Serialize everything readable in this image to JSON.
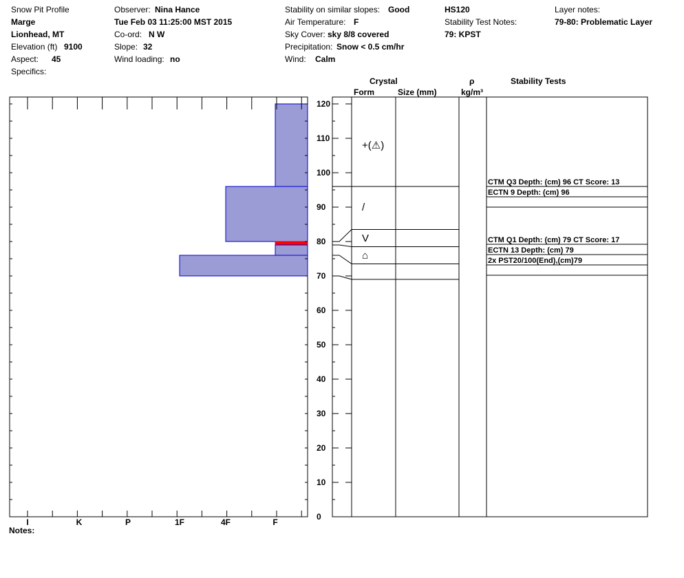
{
  "header": {
    "title": "Snow Pit Profile",
    "name": "Marge",
    "location": "Lionhead, MT",
    "elevation_label": "Elevation (ft)",
    "elevation_value": "9100",
    "aspect_label": "Aspect:",
    "aspect_value": "45",
    "specifics_label": "Specifics:",
    "observer_label": "Observer:",
    "observer_value": "Nina Hance",
    "datetime": "Tue Feb 03 11:25:00 MST 2015",
    "coord_label": "Co-ord:",
    "coord_value": "N  W",
    "slope_label": "Slope:",
    "slope_value": "32",
    "wind_loading_label": "Wind loading:",
    "wind_loading_value": "no",
    "stability_label": "Stability on similar slopes:",
    "stability_value": "Good",
    "air_temp_label": "Air Temperature:",
    "air_temp_value": "F",
    "sky_label": "Sky Cover:",
    "sky_value": "sky 8/8 covered",
    "precip_label": "Precipitation:",
    "precip_value": "Snow < 0.5 cm/hr",
    "wind_label": "Wind:",
    "wind_value": "Calm",
    "hs": "HS120",
    "stability_notes_label": "Stability Test Notes:",
    "stability_notes_value": "79: KPST",
    "layer_notes_label": "Layer notes:",
    "layer_notes_value": "79-80: Problematic Layer"
  },
  "columns": {
    "crystal": "Crystal",
    "form": "Form",
    "size": "Size (mm)",
    "rho": "ρ",
    "density_unit": "kg/m³",
    "stability_tests": "Stability Tests"
  },
  "notes_label": "Notes:",
  "chart_data": {
    "type": "bar",
    "orientation": "horizontal",
    "x_categories": [
      "I",
      "K",
      "P",
      "1F",
      "4F",
      "F"
    ],
    "y_label": "",
    "y_range": [
      0,
      120
    ],
    "y_ticks": [
      0,
      10,
      20,
      30,
      40,
      50,
      60,
      70,
      80,
      90,
      100,
      110,
      120
    ],
    "hand_hardness_layers": [
      {
        "top": 120,
        "bottom": 96,
        "hardness": "F"
      },
      {
        "top": 96,
        "bottom": 80,
        "hardness": "4F"
      },
      {
        "top": 80,
        "bottom": 79,
        "hardness": "F",
        "highlight": "#ff0000"
      },
      {
        "top": 79,
        "bottom": 76,
        "hardness": "F"
      },
      {
        "top": 76,
        "bottom": 70,
        "hardness": "1F"
      }
    ],
    "layer_boundaries": [
      96,
      83.5,
      78.5,
      73.5,
      69
    ],
    "crystal_forms": [
      {
        "depth": 108,
        "symbol": "+(⚠)",
        "name": "precipitation-particles"
      },
      {
        "depth": 90,
        "symbol": "/",
        "name": "decomposing-fragments"
      },
      {
        "depth": 81,
        "symbol": "V",
        "name": "depth-hoar"
      },
      {
        "depth": 76,
        "symbol": "⌂",
        "name": "faceted-rounded"
      }
    ],
    "stability_tests": [
      {
        "depth": 96,
        "text": "CTM Q3 Depth: (cm) 96 CT Score: 13"
      },
      {
        "depth": 96,
        "text": "ECTN 9   Depth: (cm) 96"
      },
      {
        "depth": 79,
        "text": "CTM Q1 Depth: (cm) 79 CT Score: 17"
      },
      {
        "depth": 79,
        "text": "ECTN 13   Depth: (cm) 79"
      },
      {
        "depth": 79,
        "text": "2x PST20/100(End),(cm)79"
      }
    ],
    "colors": {
      "fill": "#9b9bd6",
      "stroke": "#0000cc",
      "highlight": "#ff0000"
    }
  }
}
